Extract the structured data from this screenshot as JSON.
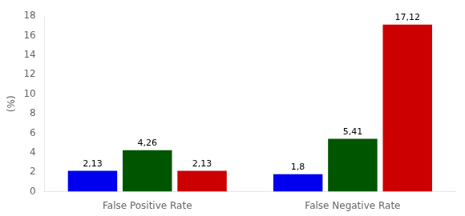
{
  "chart_data": {
    "type": "bar",
    "categories": [
      "False Positive Rate",
      "False Negative Rate"
    ],
    "series": [
      {
        "color": "#0000ee",
        "values": [
          2.13,
          1.8
        ],
        "value_labels": [
          "2,13",
          "1,8"
        ]
      },
      {
        "color": "#005500",
        "values": [
          4.26,
          5.41
        ],
        "value_labels": [
          "4,26",
          "5,41"
        ]
      },
      {
        "color": "#cc0000",
        "values": [
          2.13,
          17.12
        ],
        "value_labels": [
          "2,13",
          "17,12"
        ]
      }
    ],
    "ylabel": "(%)",
    "ylim": [
      0,
      18
    ],
    "yticks": [
      0,
      2,
      4,
      6,
      8,
      10,
      12,
      14,
      16,
      18
    ],
    "grid": false,
    "data_labels": true
  }
}
